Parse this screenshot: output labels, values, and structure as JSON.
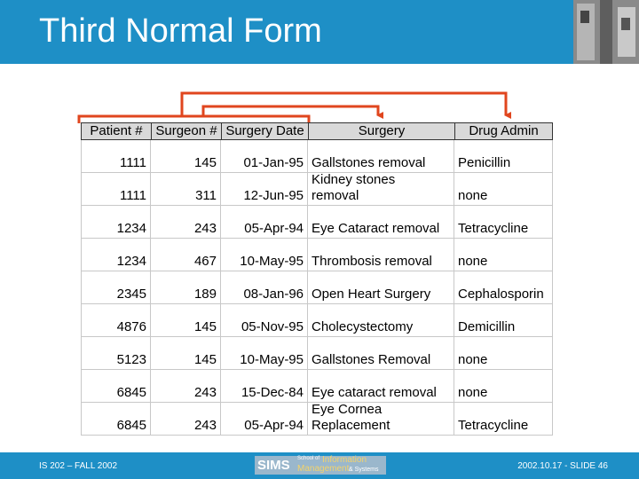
{
  "header": {
    "title": "Third Normal Form"
  },
  "table": {
    "columns": [
      "Patient #",
      "Surgeon #",
      "Surgery Date",
      "Surgery",
      "Drug Admin"
    ],
    "rows": [
      [
        "1111",
        "145",
        "01-Jan-95",
        "Gallstones removal",
        "Penicillin"
      ],
      [
        "1111",
        "311",
        "12-Jun-95",
        "Kidney stones\nremoval",
        "none"
      ],
      [
        "1234",
        "243",
        "05-Apr-94",
        "Eye Cataract removal",
        "Tetracycline"
      ],
      [
        "1234",
        "467",
        "10-May-95",
        "Thrombosis removal",
        "none"
      ],
      [
        "2345",
        "189",
        "08-Jan-96",
        "Open Heart Surgery",
        "Cephalosporin"
      ],
      [
        "4876",
        "145",
        "05-Nov-95",
        "Cholecystectomy",
        "Demicillin"
      ],
      [
        "5123",
        "145",
        "10-May-95",
        "Gallstones Removal",
        "none"
      ],
      [
        "6845",
        "243",
        "15-Dec-84",
        "Eye cataract removal",
        "none"
      ],
      [
        "6845",
        "243",
        "05-Apr-94",
        "Eye Cornea\nReplacement",
        "Tetracycline"
      ]
    ]
  },
  "footer": {
    "left": "IS 202 – FALL 2002",
    "right": "2002.10.17 - SLIDE 46",
    "logo": {
      "sims": "SIMS",
      "school_of": "School of",
      "information": "Information",
      "management": "Management",
      "systems": "& Systems"
    }
  }
}
